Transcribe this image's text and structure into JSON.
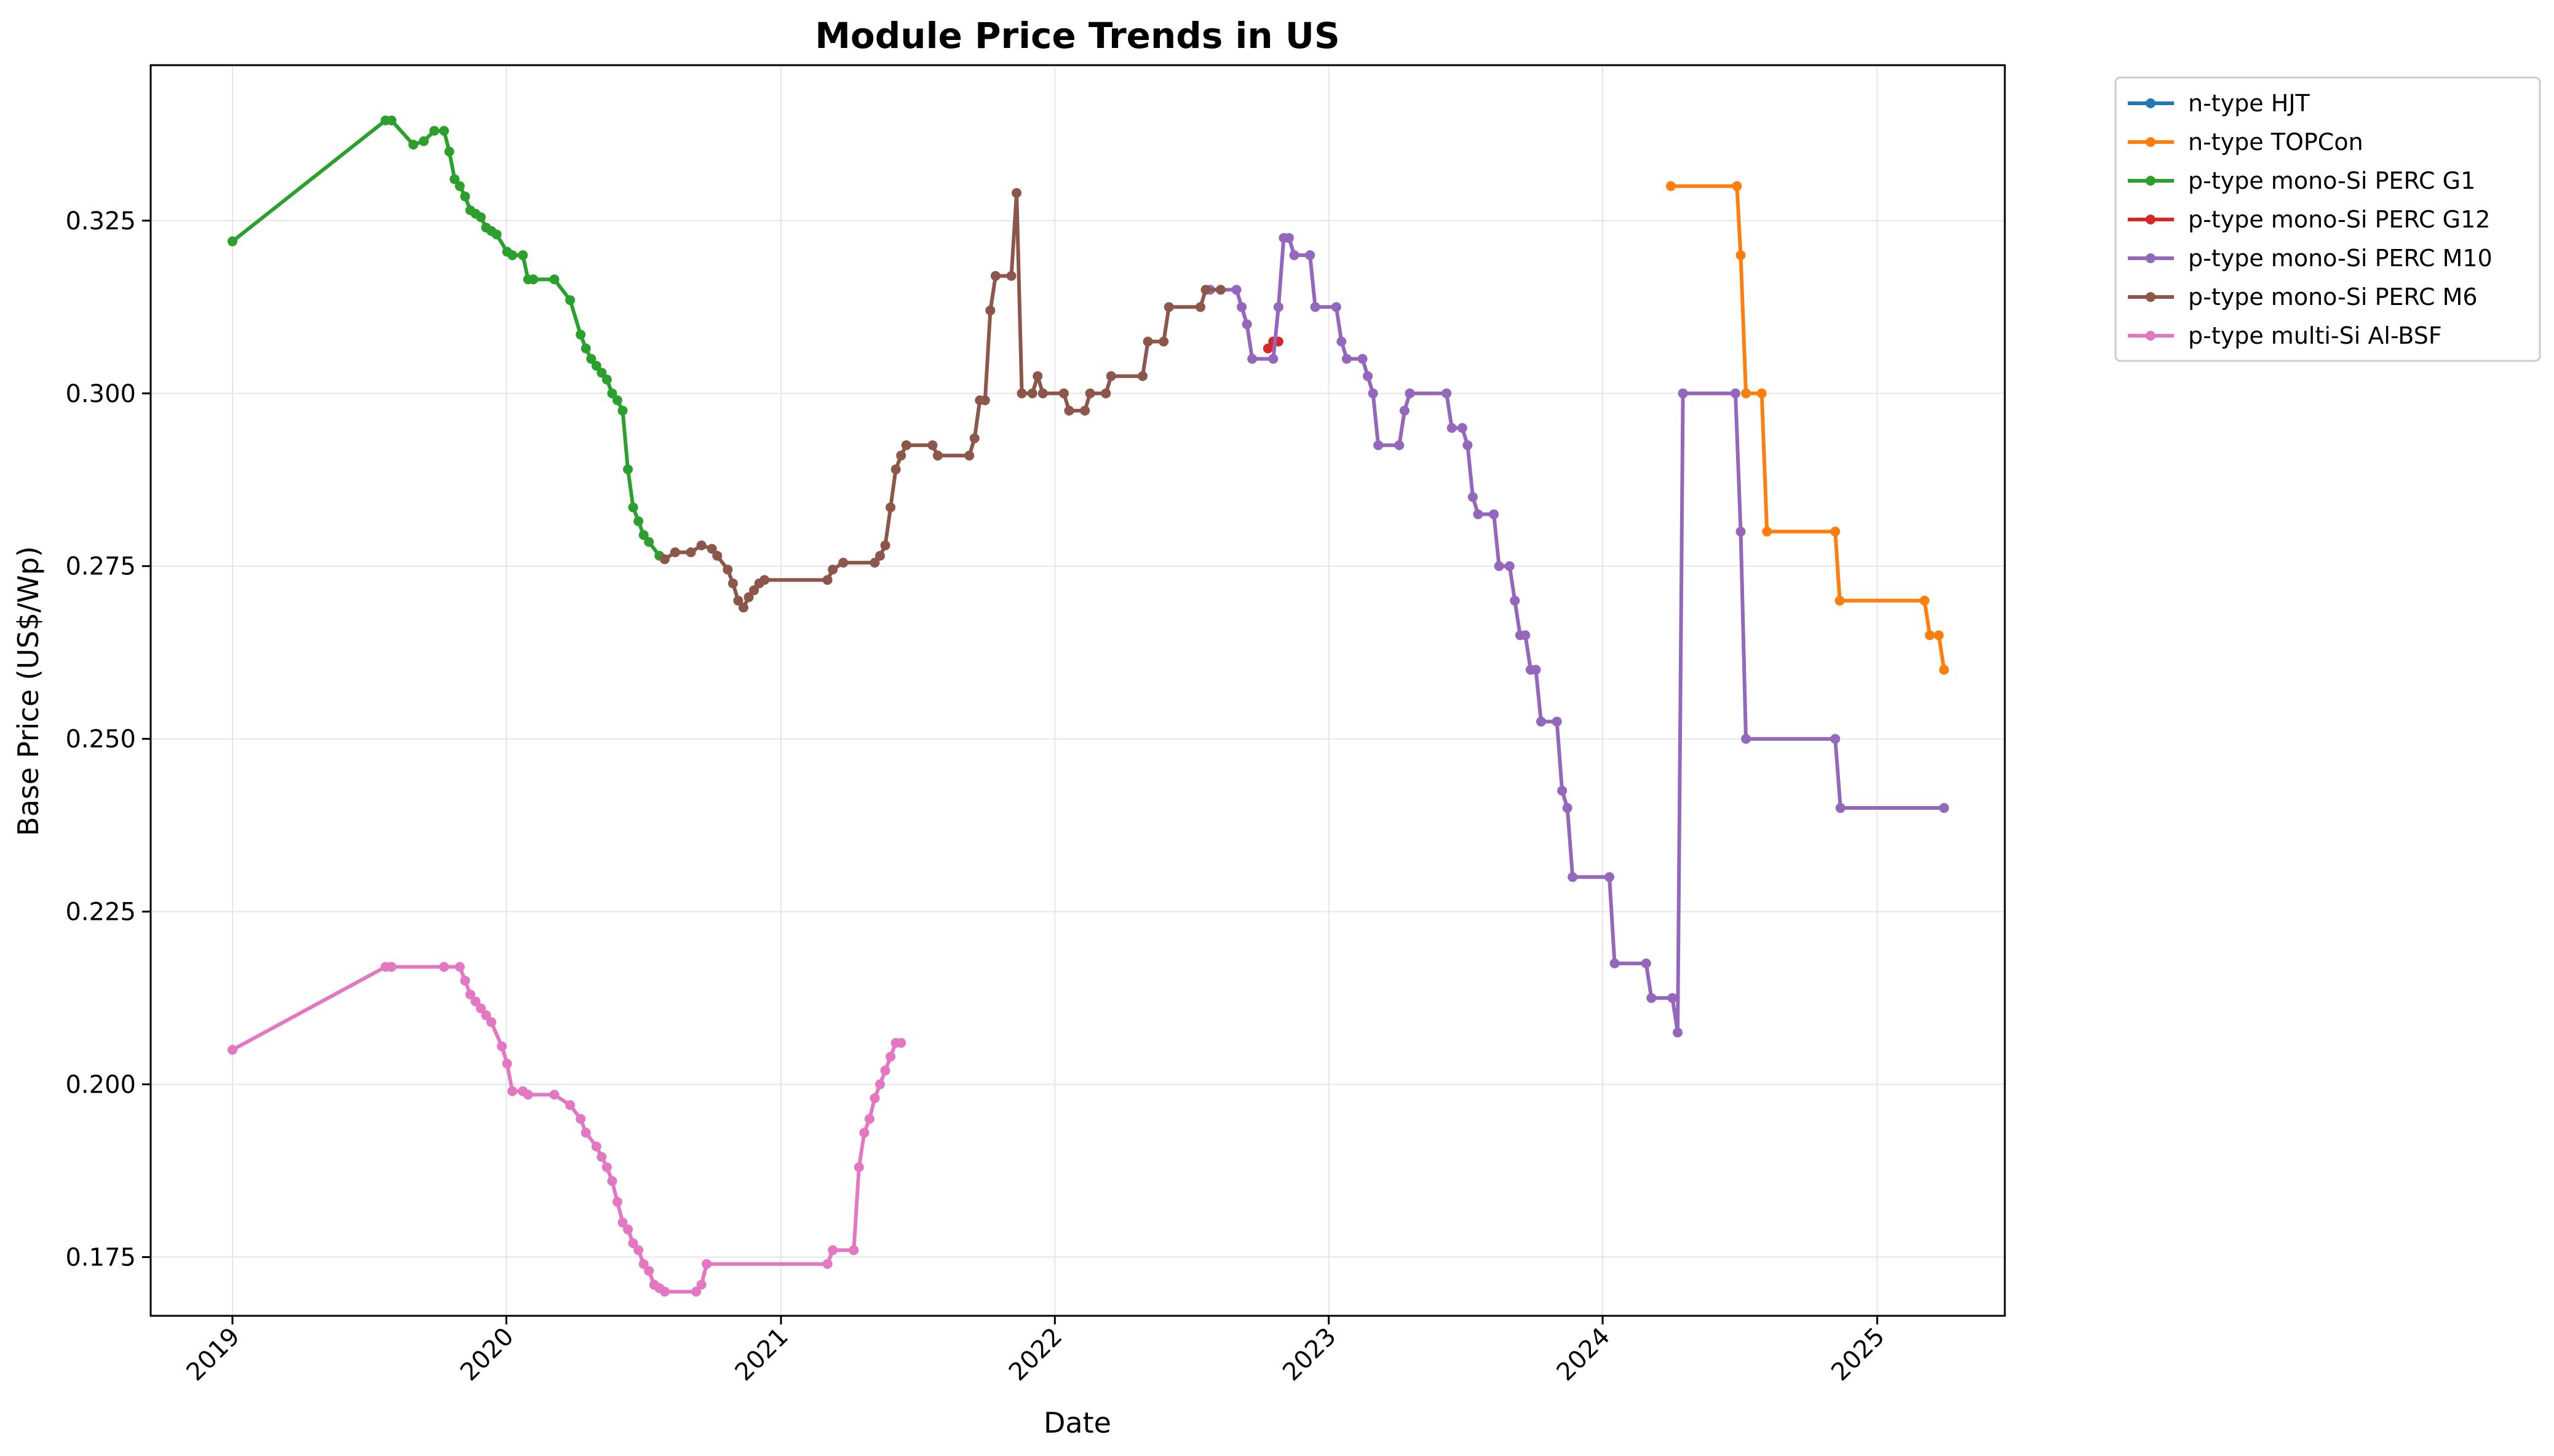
{
  "chart_data": {
    "type": "line",
    "title": "Module Price Trends in US",
    "xlabel": "Date",
    "ylabel": "Base Price (US$/Wp)",
    "xlim": [
      "2018-09-14",
      "2025-06-20"
    ],
    "ylim": [
      0.1665,
      0.3475
    ],
    "x_ticks": [
      "2019",
      "2020",
      "2021",
      "2022",
      "2023",
      "2024",
      "2025"
    ],
    "y_ticks": [
      0.175,
      0.2,
      0.225,
      0.25,
      0.275,
      0.3,
      0.325
    ],
    "y_tick_labels": [
      "0.175",
      "0.200",
      "0.225",
      "0.250",
      "0.275",
      "0.300",
      "0.325"
    ],
    "grid": true,
    "legend_position": "outside-upper-right",
    "series": [
      {
        "name": "n-type HJT",
        "color": "#1f77b4",
        "points": []
      },
      {
        "name": "n-type TOPCon",
        "color": "#ff7f0e",
        "points": [
          [
            "2024-04-01",
            0.33
          ],
          [
            "2024-06-28",
            0.33
          ],
          [
            "2024-07-03",
            0.32
          ],
          [
            "2024-07-10",
            0.3
          ],
          [
            "2024-07-31",
            0.3
          ],
          [
            "2024-08-07",
            0.28
          ],
          [
            "2024-11-06",
            0.28
          ],
          [
            "2024-11-12",
            0.27
          ],
          [
            "2025-03-05",
            0.27
          ],
          [
            "2025-03-12",
            0.265
          ],
          [
            "2025-03-24",
            0.265
          ],
          [
            "2025-03-31",
            0.26
          ]
        ]
      },
      {
        "name": "p-type mono-Si PERC G1",
        "color": "#2ca02c",
        "points": [
          [
            "2019-01-01",
            0.322
          ],
          [
            "2019-07-24",
            0.3395
          ],
          [
            "2019-08-01",
            0.3395
          ],
          [
            "2019-08-30",
            0.336
          ],
          [
            "2019-09-13",
            0.3365
          ],
          [
            "2019-09-27",
            0.338
          ],
          [
            "2019-10-10",
            0.338
          ],
          [
            "2019-10-17",
            0.335
          ],
          [
            "2019-10-24",
            0.331
          ],
          [
            "2019-10-31",
            0.33
          ],
          [
            "2019-11-07",
            0.3285
          ],
          [
            "2019-11-14",
            0.3265
          ],
          [
            "2019-11-21",
            0.326
          ],
          [
            "2019-11-28",
            0.3255
          ],
          [
            "2019-12-05",
            0.324
          ],
          [
            "2019-12-12",
            0.3235
          ],
          [
            "2019-12-19",
            0.323
          ],
          [
            "2020-01-02",
            0.3205
          ],
          [
            "2020-01-09",
            0.32
          ],
          [
            "2020-01-23",
            0.32
          ],
          [
            "2020-01-30",
            0.3165
          ],
          [
            "2020-02-06",
            0.3165
          ],
          [
            "2020-03-05",
            0.3165
          ],
          [
            "2020-03-26",
            0.3135
          ],
          [
            "2020-04-09",
            0.3085
          ],
          [
            "2020-04-16",
            0.3065
          ],
          [
            "2020-04-23",
            0.305
          ],
          [
            "2020-04-30",
            0.304
          ],
          [
            "2020-05-07",
            0.303
          ],
          [
            "2020-05-14",
            0.302
          ],
          [
            "2020-05-21",
            0.3
          ],
          [
            "2020-05-28",
            0.299
          ],
          [
            "2020-06-04",
            0.2975
          ],
          [
            "2020-06-11",
            0.289
          ],
          [
            "2020-06-18",
            0.2835
          ],
          [
            "2020-06-25",
            0.2815
          ],
          [
            "2020-07-02",
            0.2795
          ],
          [
            "2020-07-09",
            0.2785
          ],
          [
            "2020-07-23",
            0.2765
          ],
          [
            "2020-07-30",
            0.276
          ]
        ]
      },
      {
        "name": "p-type mono-Si PERC G12",
        "color": "#d62728",
        "points": [
          [
            "2022-10-12",
            0.3065
          ],
          [
            "2022-10-19",
            0.3075
          ],
          [
            "2022-10-26",
            0.3075
          ]
        ]
      },
      {
        "name": "p-type mono-Si PERC M10",
        "color": "#9467bd",
        "points": [
          [
            "2022-07-27",
            0.315
          ],
          [
            "2022-08-31",
            0.315
          ],
          [
            "2022-09-07",
            0.3125
          ],
          [
            "2022-09-14",
            0.31
          ],
          [
            "2022-09-21",
            0.305
          ],
          [
            "2022-10-19",
            0.305
          ],
          [
            "2022-10-26",
            0.3125
          ],
          [
            "2022-11-02",
            0.3225
          ],
          [
            "2022-11-09",
            0.3225
          ],
          [
            "2022-11-16",
            0.32
          ],
          [
            "2022-12-07",
            0.32
          ],
          [
            "2022-12-14",
            0.3125
          ],
          [
            "2023-01-11",
            0.3125
          ],
          [
            "2023-01-18",
            0.3075
          ],
          [
            "2023-01-25",
            0.305
          ],
          [
            "2023-02-15",
            0.305
          ],
          [
            "2023-02-22",
            0.3025
          ],
          [
            "2023-03-01",
            0.3
          ],
          [
            "2023-03-08",
            0.2925
          ],
          [
            "2023-04-05",
            0.2925
          ],
          [
            "2023-04-12",
            0.2975
          ],
          [
            "2023-04-19",
            0.3
          ],
          [
            "2023-06-07",
            0.3
          ],
          [
            "2023-06-14",
            0.295
          ],
          [
            "2023-06-28",
            0.295
          ],
          [
            "2023-07-05",
            0.2925
          ],
          [
            "2023-07-12",
            0.285
          ],
          [
            "2023-07-19",
            0.2825
          ],
          [
            "2023-08-09",
            0.2825
          ],
          [
            "2023-08-16",
            0.275
          ],
          [
            "2023-08-30",
            0.275
          ],
          [
            "2023-09-06",
            0.27
          ],
          [
            "2023-09-13",
            0.265
          ],
          [
            "2023-09-20",
            0.265
          ],
          [
            "2023-09-27",
            0.26
          ],
          [
            "2023-10-04",
            0.26
          ],
          [
            "2023-10-11",
            0.2525
          ],
          [
            "2023-11-01",
            0.2525
          ],
          [
            "2023-11-08",
            0.2425
          ],
          [
            "2023-11-15",
            0.24
          ],
          [
            "2023-11-22",
            0.23
          ],
          [
            "2024-01-10",
            0.23
          ],
          [
            "2024-01-17",
            0.2175
          ],
          [
            "2024-02-28",
            0.2175
          ],
          [
            "2024-03-06",
            0.2125
          ],
          [
            "2024-04-03",
            0.2125
          ],
          [
            "2024-04-10",
            0.2075
          ],
          [
            "2024-04-17",
            0.3
          ],
          [
            "2024-06-26",
            0.3
          ],
          [
            "2024-07-03",
            0.28
          ],
          [
            "2024-07-10",
            0.25
          ],
          [
            "2024-11-06",
            0.25
          ],
          [
            "2024-11-13",
            0.24
          ],
          [
            "2025-03-31",
            0.24
          ]
        ]
      },
      {
        "name": "p-type mono-Si PERC M6",
        "color": "#8c564b",
        "points": [
          [
            "2020-07-30",
            0.276
          ],
          [
            "2020-08-13",
            0.277
          ],
          [
            "2020-09-03",
            0.277
          ],
          [
            "2020-09-17",
            0.278
          ],
          [
            "2020-10-01",
            0.2775
          ],
          [
            "2020-10-08",
            0.2765
          ],
          [
            "2020-10-22",
            0.2745
          ],
          [
            "2020-10-29",
            0.2725
          ],
          [
            "2020-11-05",
            0.27
          ],
          [
            "2020-11-12",
            0.269
          ],
          [
            "2020-11-19",
            0.2705
          ],
          [
            "2020-11-26",
            0.2715
          ],
          [
            "2020-12-03",
            0.2725
          ],
          [
            "2020-12-10",
            0.273
          ],
          [
            "2021-03-04",
            0.273
          ],
          [
            "2021-03-11",
            0.2745
          ],
          [
            "2021-03-25",
            0.2755
          ],
          [
            "2021-05-06",
            0.2755
          ],
          [
            "2021-05-13",
            0.2765
          ],
          [
            "2021-05-20",
            0.278
          ],
          [
            "2021-05-27",
            0.2835
          ],
          [
            "2021-06-03",
            0.289
          ],
          [
            "2021-06-10",
            0.291
          ],
          [
            "2021-06-17",
            0.2925
          ],
          [
            "2021-07-22",
            0.2925
          ],
          [
            "2021-07-29",
            0.291
          ],
          [
            "2021-09-09",
            0.291
          ],
          [
            "2021-09-16",
            0.2935
          ],
          [
            "2021-09-23",
            0.299
          ],
          [
            "2021-09-30",
            0.299
          ],
          [
            "2021-10-07",
            0.312
          ],
          [
            "2021-10-14",
            0.317
          ],
          [
            "2021-11-04",
            0.317
          ],
          [
            "2021-11-11",
            0.329
          ],
          [
            "2021-11-18",
            0.3
          ],
          [
            "2021-12-02",
            0.3
          ],
          [
            "2021-12-09",
            0.3025
          ],
          [
            "2021-12-16",
            0.3
          ],
          [
            "2022-01-13",
            0.3
          ],
          [
            "2022-01-20",
            0.2975
          ],
          [
            "2022-02-10",
            0.2975
          ],
          [
            "2022-02-17",
            0.3
          ],
          [
            "2022-03-10",
            0.3
          ],
          [
            "2022-03-17",
            0.3025
          ],
          [
            "2022-04-28",
            0.3025
          ],
          [
            "2022-05-05",
            0.3075
          ],
          [
            "2022-05-26",
            0.3075
          ],
          [
            "2022-06-02",
            0.3125
          ],
          [
            "2022-07-14",
            0.3125
          ],
          [
            "2022-07-21",
            0.315
          ],
          [
            "2022-08-10",
            0.315
          ]
        ]
      },
      {
        "name": "p-type multi-Si Al-BSF",
        "color": "#e377c2",
        "points": [
          [
            "2019-01-01",
            0.205
          ],
          [
            "2019-07-24",
            0.217
          ],
          [
            "2019-08-01",
            0.217
          ],
          [
            "2019-10-10",
            0.217
          ],
          [
            "2019-10-31",
            0.217
          ],
          [
            "2019-11-07",
            0.215
          ],
          [
            "2019-11-14",
            0.213
          ],
          [
            "2019-11-21",
            0.212
          ],
          [
            "2019-11-28",
            0.211
          ],
          [
            "2019-12-05",
            0.21
          ],
          [
            "2019-12-12",
            0.209
          ],
          [
            "2019-12-26",
            0.2055
          ],
          [
            "2020-01-02",
            0.203
          ],
          [
            "2020-01-09",
            0.199
          ],
          [
            "2020-01-23",
            0.199
          ],
          [
            "2020-01-30",
            0.1985
          ],
          [
            "2020-03-05",
            0.1985
          ],
          [
            "2020-03-26",
            0.197
          ],
          [
            "2020-04-09",
            0.195
          ],
          [
            "2020-04-16",
            0.193
          ],
          [
            "2020-04-30",
            0.191
          ],
          [
            "2020-05-07",
            0.1895
          ],
          [
            "2020-05-14",
            0.188
          ],
          [
            "2020-05-21",
            0.186
          ],
          [
            "2020-05-28",
            0.183
          ],
          [
            "2020-06-04",
            0.18
          ],
          [
            "2020-06-11",
            0.179
          ],
          [
            "2020-06-18",
            0.177
          ],
          [
            "2020-06-25",
            0.176
          ],
          [
            "2020-07-02",
            0.174
          ],
          [
            "2020-07-09",
            0.173
          ],
          [
            "2020-07-16",
            0.171
          ],
          [
            "2020-07-23",
            0.1705
          ],
          [
            "2020-07-30",
            0.17
          ],
          [
            "2020-09-10",
            0.17
          ],
          [
            "2020-09-17",
            0.171
          ],
          [
            "2020-09-24",
            0.174
          ],
          [
            "2021-03-04",
            0.174
          ],
          [
            "2021-03-11",
            0.176
          ],
          [
            "2021-04-08",
            0.176
          ],
          [
            "2021-04-15",
            0.188
          ],
          [
            "2021-04-22",
            0.193
          ],
          [
            "2021-04-29",
            0.195
          ],
          [
            "2021-05-06",
            0.198
          ],
          [
            "2021-05-13",
            0.2
          ],
          [
            "2021-05-20",
            0.202
          ],
          [
            "2021-05-27",
            0.204
          ],
          [
            "2021-06-03",
            0.206
          ],
          [
            "2021-06-10",
            0.206
          ]
        ]
      }
    ]
  }
}
